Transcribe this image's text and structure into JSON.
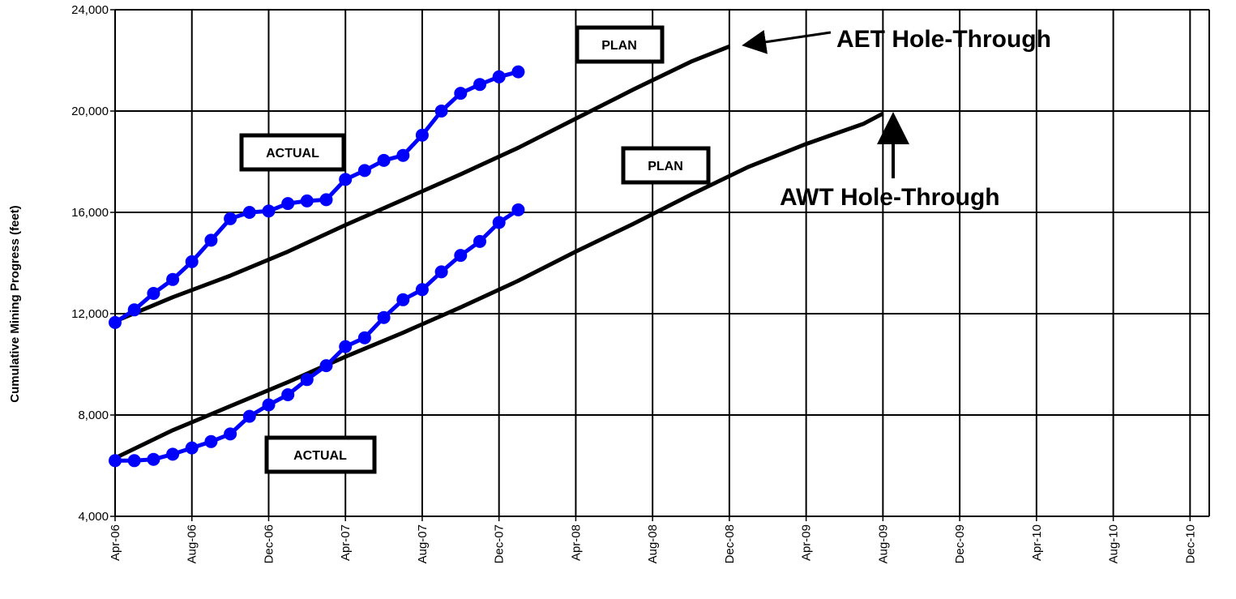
{
  "chart_data": {
    "type": "line",
    "title": "",
    "xlabel": "",
    "ylabel": "Cumulative Mining Progress (feet)",
    "ylim": [
      4000,
      24000
    ],
    "yticks": [
      "4,000",
      "8,000",
      "12,000",
      "16,000",
      "20,000",
      "24,000"
    ],
    "xlim": [
      "2006-04",
      "2011-01"
    ],
    "xticks": [
      "Apr-06",
      "Aug-06",
      "Dec-06",
      "Apr-07",
      "Aug-07",
      "Dec-07",
      "Apr-08",
      "Aug-08",
      "Dec-08",
      "Apr-09",
      "Aug-09",
      "Dec-09",
      "Apr-10",
      "Aug-10",
      "Dec-10"
    ],
    "grid": true,
    "legend": "none",
    "colors": {
      "plan": "#000000",
      "actual": "#0000ff"
    },
    "series": [
      {
        "group": "AET",
        "kind": "plan",
        "x": [
          "2006-04",
          "2006-07",
          "2006-10",
          "2007-01",
          "2007-04",
          "2007-07",
          "2007-10",
          "2008-01",
          "2008-04",
          "2008-07",
          "2008-10",
          "2008-12"
        ],
        "values": [
          11700,
          12650,
          13500,
          14450,
          15500,
          16500,
          17500,
          18550,
          19700,
          20850,
          21950,
          22550
        ]
      },
      {
        "group": "AWT",
        "kind": "plan",
        "x": [
          "2006-04",
          "2006-07",
          "2006-10",
          "2007-01",
          "2007-04",
          "2007-07",
          "2007-10",
          "2008-01",
          "2008-04",
          "2008-07",
          "2008-10",
          "2009-01",
          "2009-04",
          "2009-07",
          "2009-08"
        ],
        "values": [
          6300,
          7400,
          8350,
          9300,
          10300,
          11250,
          12250,
          13300,
          14450,
          15550,
          16700,
          17800,
          18700,
          19500,
          19900
        ]
      },
      {
        "group": "AET",
        "kind": "actual",
        "x": [
          "2006-04",
          "2006-05",
          "2006-06",
          "2006-07",
          "2006-08",
          "2006-09",
          "2006-10",
          "2006-11",
          "2006-12",
          "2007-01",
          "2007-02",
          "2007-03",
          "2007-04",
          "2007-05",
          "2007-06",
          "2007-07",
          "2007-08",
          "2007-09",
          "2007-10",
          "2007-11",
          "2007-12",
          "2008-01"
        ],
        "values": [
          11650,
          12150,
          12800,
          13350,
          14050,
          14900,
          15750,
          16000,
          16050,
          16350,
          16450,
          16500,
          17300,
          17650,
          18050,
          18250,
          19050,
          20000,
          20700,
          21050,
          21350,
          21550
        ]
      },
      {
        "group": "AWT",
        "kind": "actual",
        "x": [
          "2006-04",
          "2006-05",
          "2006-06",
          "2006-07",
          "2006-08",
          "2006-09",
          "2006-10",
          "2006-11",
          "2006-12",
          "2007-01",
          "2007-02",
          "2007-03",
          "2007-04",
          "2007-05",
          "2007-06",
          "2007-07",
          "2007-08",
          "2007-09",
          "2007-10",
          "2007-11",
          "2007-12",
          "2008-01"
        ],
        "values": [
          6200,
          6200,
          6250,
          6450,
          6700,
          6950,
          7250,
          7950,
          8400,
          8800,
          9400,
          9950,
          10700,
          11050,
          11850,
          12550,
          12950,
          13650,
          14300,
          14850,
          15600,
          16100
        ]
      }
    ],
    "annotations": [
      {
        "text": "PLAN",
        "group": "AET",
        "box": true
      },
      {
        "text": "PLAN",
        "group": "AWT",
        "box": true
      },
      {
        "text": "ACTUAL",
        "group": "AET",
        "box": true
      },
      {
        "text": "ACTUAL",
        "group": "AWT",
        "box": true
      },
      {
        "text": "AET Hole-Through",
        "arrow_to": {
          "x": "2008-12",
          "y": 22550
        }
      },
      {
        "text": "AWT Hole-Through",
        "arrow_to": {
          "x": "2009-08",
          "y": 19900
        }
      }
    ]
  }
}
